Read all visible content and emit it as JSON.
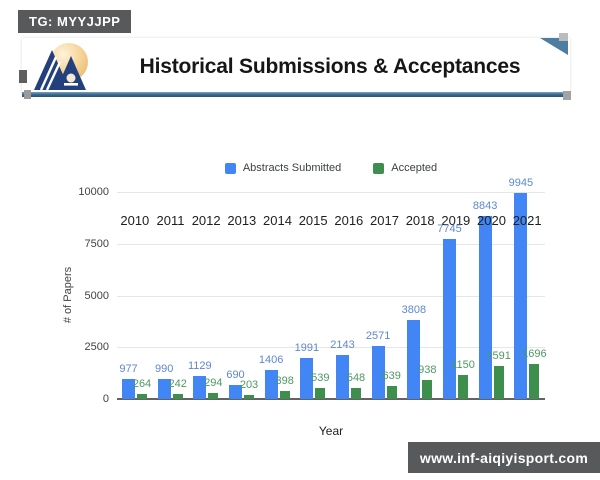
{
  "header": {
    "watermark": "TG: MYYJJPP",
    "title": "Historical Submissions & Acceptances",
    "logo": "iaa-mountains-sun-logo"
  },
  "footer": {
    "watermark": "www.inf-aiqiyisport.com"
  },
  "chart_data": {
    "type": "bar",
    "title": "Historical Submissions & Acceptances",
    "categories": [
      "2010",
      "2011",
      "2012",
      "2013",
      "2014",
      "2015",
      "2016",
      "2017",
      "2018",
      "2019",
      "2020",
      "2021"
    ],
    "series": [
      {
        "name": "Abstracts Submitted",
        "color": "#4285F4",
        "label_color": "#5f87d1",
        "values": [
          977,
          990,
          1129,
          690,
          1406,
          1991,
          2143,
          2571,
          3808,
          7745,
          8843,
          9945
        ]
      },
      {
        "name": "Accepted",
        "color": "#3E8E4E",
        "label_color": "#4d9862",
        "values": [
          264,
          242,
          294,
          203,
          398,
          539,
          548,
          639,
          938,
          1150,
          1591,
          1696
        ]
      }
    ],
    "xlabel": "Year",
    "ylabel": "# of Papers",
    "ylim": [
      0,
      10000
    ],
    "yticks": [
      0,
      2500,
      5000,
      7500,
      10000
    ],
    "grid": true,
    "legend_position": "top"
  }
}
